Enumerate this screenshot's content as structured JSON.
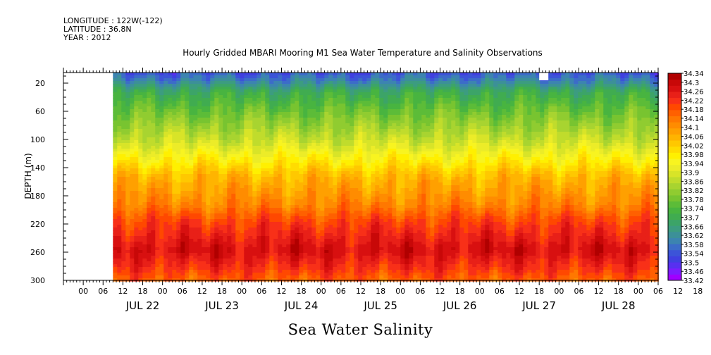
{
  "header": {
    "longitude": "LONGITUDE : 122W(-122)",
    "latitude": "LATITUDE : 36.8N",
    "year": "YEAR : 2012"
  },
  "colors": {
    "colorbar": [
      "#a000ff",
      "#7c1cff",
      "#5830f0",
      "#4040e0",
      "#3c54d8",
      "#3c6cc8",
      "#3c84b0",
      "#3c9098",
      "#3c9c80",
      "#3ca468",
      "#40ac50",
      "#48b440",
      "#5cbc38",
      "#78c430",
      "#90cc30",
      "#a8d430",
      "#c0dc2c",
      "#d8e428",
      "#ecec28",
      "#f8f420",
      "#fff000",
      "#ffdc00",
      "#ffc800",
      "#ffb400",
      "#ffa000",
      "#ff8c00",
      "#ff7800",
      "#ff6000",
      "#ff4800",
      "#f83018",
      "#e82018",
      "#d81010",
      "#c80808",
      "#b00000"
    ]
  },
  "chart_data": {
    "type": "heatmap",
    "title": "Hourly Gridded MBARI Mooring M1 Sea Water Temperature and Salinity Observations",
    "xlabel": "Sea Water Salinity",
    "ylabel": "DEPTH (m)",
    "y_ticks": [
      20,
      60,
      100,
      140,
      180,
      220,
      260,
      300
    ],
    "ylim": [
      300,
      5
    ],
    "x_hour_ticks": [
      "00",
      "06",
      "12",
      "18",
      "00",
      "06",
      "12",
      "18",
      "00",
      "06",
      "12",
      "18",
      "00",
      "06",
      "12",
      "18",
      "00",
      "06",
      "12",
      "18",
      "00",
      "06",
      "12",
      "18",
      "00",
      "06",
      "12",
      "18",
      "00",
      "06",
      "12",
      "18"
    ],
    "x_day_labels": [
      "JUL 22",
      "JUL 23",
      "JUL 24",
      "JUL 25",
      "JUL 26",
      "JUL 27",
      "JUL 28"
    ],
    "x_range_hours": [
      -12,
      168
    ],
    "data_start_hour": 3,
    "colorbar_labels": [
      "34.34",
      "34.3",
      "34.26",
      "34.22",
      "34.18",
      "34.14",
      "34.1",
      "34.06",
      "34.02",
      "33.98",
      "33.94",
      "33.9",
      "33.86",
      "33.82",
      "33.78",
      "33.74",
      "33.7",
      "33.66",
      "33.62",
      "33.58",
      "33.54",
      "33.5",
      "33.46",
      "33.42"
    ],
    "depth_profile": [
      {
        "depth": 5,
        "salinity": 33.55
      },
      {
        "depth": 15,
        "salinity": 33.6
      },
      {
        "depth": 30,
        "salinity": 33.7
      },
      {
        "depth": 60,
        "salinity": 33.78
      },
      {
        "depth": 100,
        "salinity": 33.88
      },
      {
        "depth": 130,
        "salinity": 33.98
      },
      {
        "depth": 150,
        "salinity": 34.05
      },
      {
        "depth": 190,
        "salinity": 34.12
      },
      {
        "depth": 215,
        "salinity": 34.2
      },
      {
        "depth": 255,
        "salinity": 34.28
      },
      {
        "depth": 280,
        "salinity": 34.22
      },
      {
        "depth": 300,
        "salinity": 34.16
      }
    ]
  }
}
